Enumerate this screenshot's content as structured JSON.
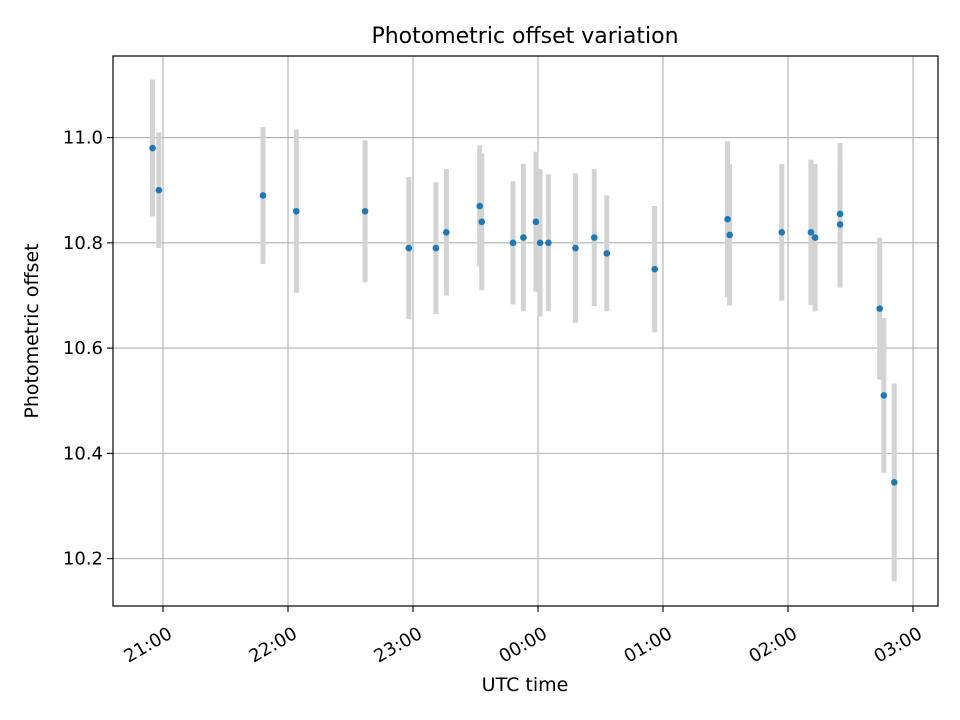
{
  "chart_data": {
    "type": "scatter",
    "title": "Photometric offset variation",
    "xlabel": "UTC time",
    "ylabel": "Photometric offset",
    "x_ticks": [
      "21:00",
      "22:00",
      "23:00",
      "00:00",
      "01:00",
      "02:00",
      "03:00"
    ],
    "y_ticks": [
      "10.2",
      "10.4",
      "10.6",
      "10.8",
      "11.0"
    ],
    "x_range_hours": [
      20.6,
      27.2
    ],
    "ylim": [
      10.11,
      11.155
    ],
    "grid": true,
    "marker_color": "#1f77b4",
    "errorbar_color": "#d3d3d3",
    "series": [
      {
        "points": [
          {
            "t": "20:55",
            "y": 10.98,
            "err": 0.13
          },
          {
            "t": "20:58",
            "y": 10.9,
            "err": 0.11
          },
          {
            "t": "21:48",
            "y": 10.89,
            "err": 0.13
          },
          {
            "t": "22:04",
            "y": 10.86,
            "err": 0.155
          },
          {
            "t": "22:37",
            "y": 10.86,
            "err": 0.135
          },
          {
            "t": "22:58",
            "y": 10.79,
            "err": 0.135
          },
          {
            "t": "23:11",
            "y": 10.79,
            "err": 0.125
          },
          {
            "t": "23:16",
            "y": 10.82,
            "err": 0.12
          },
          {
            "t": "23:32",
            "y": 10.87,
            "err": 0.115
          },
          {
            "t": "23:33",
            "y": 10.84,
            "err": 0.13
          },
          {
            "t": "23:48",
            "y": 10.8,
            "err": 0.117
          },
          {
            "t": "23:53",
            "y": 10.81,
            "err": 0.14
          },
          {
            "t": "23:59",
            "y": 10.84,
            "err": 0.133
          },
          {
            "t": "00:01",
            "y": 10.8,
            "err": 0.14
          },
          {
            "t": "00:05",
            "y": 10.8,
            "err": 0.13
          },
          {
            "t": "00:18",
            "y": 10.79,
            "err": 0.142
          },
          {
            "t": "00:27",
            "y": 10.81,
            "err": 0.13
          },
          {
            "t": "00:33",
            "y": 10.78,
            "err": 0.11
          },
          {
            "t": "00:56",
            "y": 10.75,
            "err": 0.12
          },
          {
            "t": "01:31",
            "y": 10.845,
            "err": 0.148
          },
          {
            "t": "01:32",
            "y": 10.815,
            "err": 0.134
          },
          {
            "t": "01:57",
            "y": 10.82,
            "err": 0.13
          },
          {
            "t": "02:11",
            "y": 10.82,
            "err": 0.138
          },
          {
            "t": "02:13",
            "y": 10.81,
            "err": 0.14
          },
          {
            "t": "02:25",
            "y": 10.855,
            "err": 0.135
          },
          {
            "t": "02:25",
            "y": 10.835,
            "err": 0.12
          },
          {
            "t": "02:44",
            "y": 10.675,
            "err": 0.135
          },
          {
            "t": "02:46",
            "y": 10.51,
            "err": 0.147
          },
          {
            "t": "02:51",
            "y": 10.345,
            "err": 0.188
          }
        ]
      }
    ]
  }
}
